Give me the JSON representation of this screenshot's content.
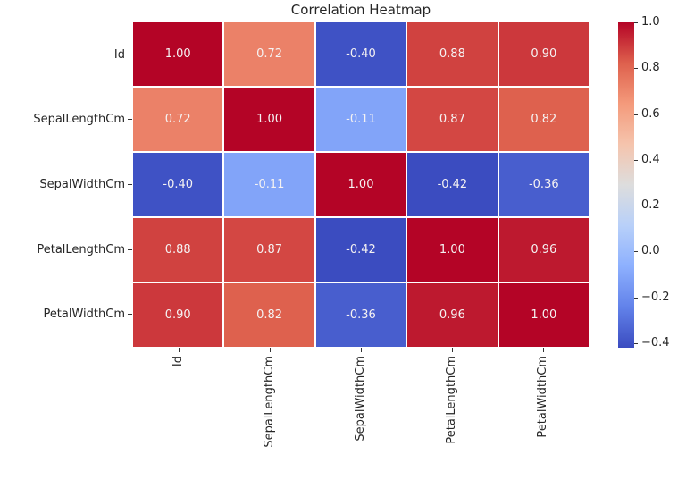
{
  "chart_data": {
    "type": "heatmap",
    "title": "Correlation Heatmap",
    "categories": [
      "Id",
      "SepalLengthCm",
      "SepalWidthCm",
      "PetalLengthCm",
      "PetalWidthCm"
    ],
    "matrix": [
      [
        1.0,
        0.72,
        -0.4,
        0.88,
        0.9
      ],
      [
        0.72,
        1.0,
        -0.11,
        0.87,
        0.82
      ],
      [
        -0.4,
        -0.11,
        1.0,
        -0.42,
        -0.36
      ],
      [
        0.88,
        0.87,
        -0.42,
        1.0,
        0.96
      ],
      [
        0.9,
        0.82,
        -0.36,
        0.96,
        1.0
      ]
    ],
    "vmin": -0.42,
    "vmax": 1.0,
    "colormap": "coolwarm",
    "colormap_anchors": [
      "#3b4cc0",
      "#6282ea",
      "#8db0fe",
      "#b8d0f9",
      "#dddddd",
      "#f5c4ad",
      "#f49a7b",
      "#de604d",
      "#b40426"
    ],
    "annot_color": "#f5f2f2",
    "annot_decimals": 2,
    "grid_line_color": "#ffffff",
    "tick_color": "#262626",
    "colorbar_ticks": [
      {
        "value": 1.0,
        "label": "1.0"
      },
      {
        "value": 0.8,
        "label": "0.8"
      },
      {
        "value": 0.6,
        "label": "0.6"
      },
      {
        "value": 0.4,
        "label": "0.4"
      },
      {
        "value": 0.2,
        "label": "0.2"
      },
      {
        "value": 0.0,
        "label": "0.0"
      },
      {
        "value": -0.2,
        "label": "−0.2"
      },
      {
        "value": -0.4,
        "label": "−0.4"
      }
    ],
    "legend_position": "right-colorbar",
    "grid": "white cell separators, no outer frame"
  }
}
